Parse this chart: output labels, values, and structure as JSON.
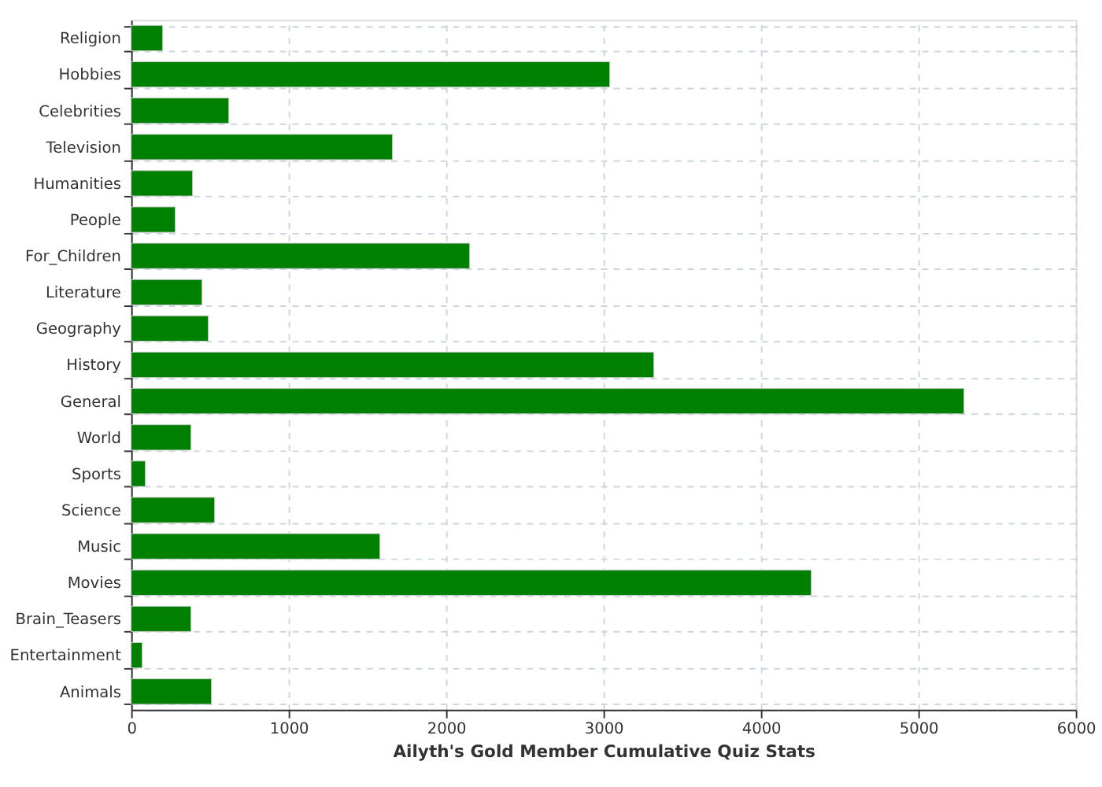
{
  "chart_data": {
    "type": "bar",
    "orientation": "horizontal",
    "xlabel": "Ailyth's Gold Member Cumulative Quiz Stats",
    "categories": [
      "Religion",
      "Hobbies",
      "Celebrities",
      "Television",
      "Humanities",
      "People",
      "For_Children",
      "Literature",
      "Geography",
      "History",
      "General",
      "World",
      "Sports",
      "Science",
      "Music",
      "Movies",
      "Brain_Teasers",
      "Entertainment",
      "Animals"
    ],
    "values": [
      200,
      3040,
      620,
      1660,
      390,
      280,
      2150,
      450,
      490,
      3320,
      5290,
      380,
      90,
      530,
      1580,
      4320,
      380,
      70,
      510
    ],
    "color": "#008000",
    "xlim": [
      0,
      6000
    ],
    "xticks": [
      0,
      1000,
      2000,
      3000,
      4000,
      5000,
      6000
    ],
    "grid": true
  }
}
